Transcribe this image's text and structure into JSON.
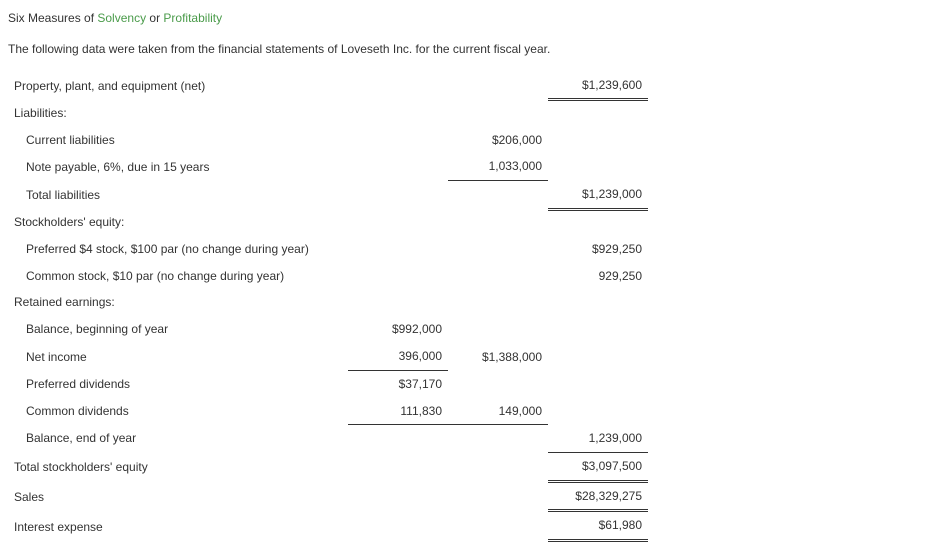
{
  "title_prefix": "Six Measures of ",
  "title_green1": "Solvency",
  "title_mid": " or ",
  "title_green2": "Profitability",
  "intro": "The following data were taken from the financial statements of Loveseth Inc. for the current fiscal year.",
  "rows": {
    "ppe_label": "Property, plant, and equipment (net)",
    "ppe_val": "$1,239,600",
    "liab_label": "Liabilities:",
    "curr_liab_label": "Current liabilities",
    "curr_liab_val": "$206,000",
    "note_label": "Note payable, 6%, due in 15 years",
    "note_val": "1,033,000",
    "total_liab_label": "Total liabilities",
    "total_liab_val": "$1,239,000",
    "se_label": "Stockholders' equity:",
    "pref_label": "Preferred $4 stock, $100 par (no change during year)",
    "pref_val": "$929,250",
    "common_label": "Common stock, $10 par (no change during year)",
    "common_val": "929,250",
    "re_label": "Retained earnings:",
    "bal_begin_label": "Balance, beginning of year",
    "bal_begin_val": "$992,000",
    "ni_label": "Net income",
    "ni_val": "396,000",
    "ni_sub": "$1,388,000",
    "pref_div_label": "Preferred dividends",
    "pref_div_val": "$37,170",
    "com_div_label": "Common dividends",
    "com_div_val": "111,830",
    "com_div_sub": "149,000",
    "bal_end_label": "Balance, end of year",
    "bal_end_val": "1,239,000",
    "tot_se_label": "Total stockholders' equity",
    "tot_se_val": "$3,097,500",
    "sales_label": "Sales",
    "sales_val": "$28,329,275",
    "int_label": "Interest expense",
    "int_val": "$61,980"
  },
  "style": {
    "font_family": "Verdana, Arial, sans-serif",
    "font_size_pt": 12,
    "text_color": "#333333",
    "green_color": "#4a9b4a",
    "background": "#ffffff",
    "underline_color": "#333333",
    "col_widths": {
      "label": 340,
      "amt": 100
    }
  }
}
